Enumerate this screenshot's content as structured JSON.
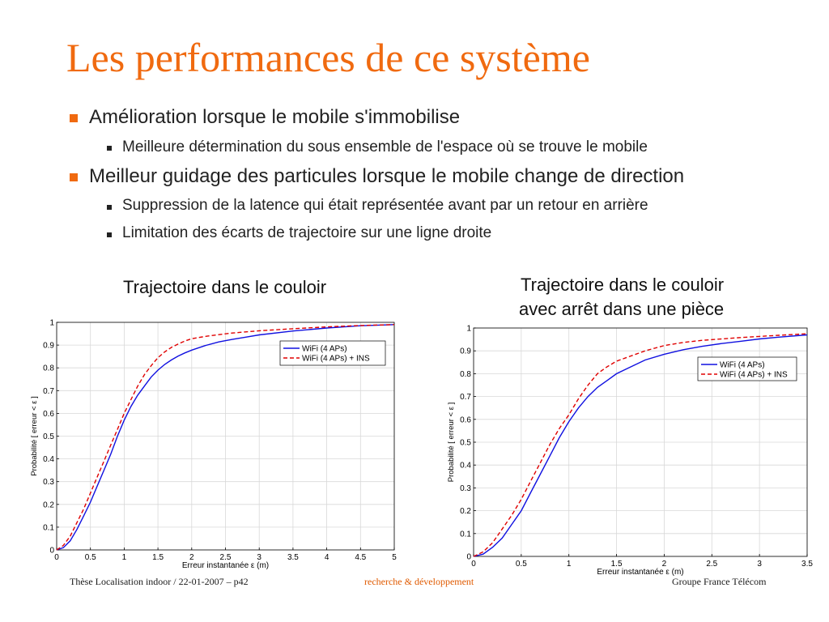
{
  "title": "Les performances de ce système",
  "bullets": [
    {
      "level": 1,
      "text": "Amélioration lorsque le mobile s'immobilise"
    },
    {
      "level": 2,
      "text": "Meilleure détermination du sous ensemble de l'espace où se trouve le mobile"
    },
    {
      "level": 1,
      "text": "Meilleur guidage des particules lorsque le mobile change de direction"
    },
    {
      "level": 2,
      "text": "Suppression de la latence qui était représentée avant par un retour en arrière"
    },
    {
      "level": 2,
      "text": "Limitation des écarts de trajectoire sur une ligne droite"
    }
  ],
  "captions": {
    "left": "Trajectoire dans le couloir",
    "right_line1": "Trajectoire dans le couloir",
    "right_line2": "avec arrêt dans une pièce"
  },
  "footer": {
    "left": "Thèse Localisation indoor / 22-01-2007 –  p42",
    "center": "recherche & développement",
    "right": "Groupe France Télécom"
  },
  "colors": {
    "title": "#f06a10",
    "wifi": "#1010e0",
    "ins": "#e00000",
    "footer_center": "#e05a00"
  },
  "chart_data": [
    {
      "type": "line",
      "xlabel": "Erreur instantanée ε (m)",
      "ylabel": "Probabilité [ erreur < ε ]",
      "xlim": [
        0,
        5
      ],
      "ylim": [
        0,
        1
      ],
      "xticks": [
        "0",
        "0.5",
        "1",
        "1.5",
        "2",
        "2.5",
        "3",
        "3.5",
        "4",
        "4.5",
        "5"
      ],
      "yticks": [
        "0",
        "0.1",
        "0.2",
        "0.3",
        "0.4",
        "0.5",
        "0.6",
        "0.7",
        "0.8",
        "0.9",
        "1"
      ],
      "legend_position": "top-right",
      "series": [
        {
          "name": "WiFi (4 APs)",
          "style": "solid",
          "x": [
            0,
            0.1,
            0.2,
            0.3,
            0.4,
            0.5,
            0.6,
            0.7,
            0.8,
            0.9,
            1.0,
            1.1,
            1.2,
            1.3,
            1.4,
            1.5,
            1.6,
            1.7,
            1.8,
            1.9,
            2.0,
            2.2,
            2.4,
            2.6,
            2.8,
            3.0,
            3.5,
            4.0,
            4.5,
            5.0
          ],
          "y": [
            0,
            0.01,
            0.04,
            0.09,
            0.15,
            0.21,
            0.28,
            0.35,
            0.42,
            0.5,
            0.57,
            0.63,
            0.68,
            0.72,
            0.76,
            0.79,
            0.815,
            0.835,
            0.852,
            0.866,
            0.878,
            0.898,
            0.914,
            0.925,
            0.935,
            0.945,
            0.962,
            0.975,
            0.985,
            0.99
          ]
        },
        {
          "name": "WiFi (4 APs) + INS",
          "style": "dashed",
          "x": [
            0,
            0.1,
            0.2,
            0.3,
            0.4,
            0.5,
            0.6,
            0.7,
            0.8,
            0.9,
            1.0,
            1.1,
            1.2,
            1.3,
            1.4,
            1.5,
            1.6,
            1.7,
            1.8,
            1.9,
            2.0,
            2.2,
            2.4,
            2.6,
            2.8,
            3.0,
            3.5,
            4.0,
            4.5,
            5.0
          ],
          "y": [
            0,
            0.02,
            0.06,
            0.12,
            0.18,
            0.25,
            0.32,
            0.39,
            0.46,
            0.53,
            0.6,
            0.66,
            0.72,
            0.77,
            0.81,
            0.845,
            0.87,
            0.89,
            0.905,
            0.918,
            0.928,
            0.938,
            0.946,
            0.953,
            0.958,
            0.963,
            0.972,
            0.98,
            0.986,
            0.99
          ]
        }
      ]
    },
    {
      "type": "line",
      "xlabel": "Erreur instantanée ε (m)",
      "ylabel": "Probabilité [ erreur < ε ]",
      "xlim": [
        0,
        3.5
      ],
      "ylim": [
        0,
        1
      ],
      "xticks": [
        "0",
        "0.5",
        "1",
        "1.5",
        "2",
        "2.5",
        "3",
        "3.5"
      ],
      "yticks": [
        "0",
        "0.1",
        "0.2",
        "0.3",
        "0.4",
        "0.5",
        "0.6",
        "0.7",
        "0.8",
        "0.9",
        "1"
      ],
      "legend_position": "center-right",
      "series": [
        {
          "name": "WiFi (4 APs)",
          "style": "solid",
          "x": [
            0,
            0.1,
            0.2,
            0.3,
            0.4,
            0.5,
            0.6,
            0.7,
            0.8,
            0.9,
            1.0,
            1.1,
            1.2,
            1.3,
            1.4,
            1.5,
            1.6,
            1.8,
            2.0,
            2.2,
            2.4,
            2.6,
            2.8,
            3.0,
            3.2,
            3.5
          ],
          "y": [
            0,
            0.01,
            0.04,
            0.08,
            0.14,
            0.2,
            0.28,
            0.36,
            0.44,
            0.52,
            0.59,
            0.65,
            0.7,
            0.74,
            0.77,
            0.8,
            0.82,
            0.86,
            0.885,
            0.905,
            0.92,
            0.932,
            0.942,
            0.952,
            0.96,
            0.97
          ]
        },
        {
          "name": "WiFi (4 APs) + INS",
          "style": "dashed",
          "x": [
            0,
            0.1,
            0.2,
            0.3,
            0.4,
            0.5,
            0.6,
            0.7,
            0.8,
            0.9,
            1.0,
            1.1,
            1.2,
            1.3,
            1.4,
            1.5,
            1.6,
            1.8,
            2.0,
            2.2,
            2.4,
            2.6,
            2.8,
            3.0,
            3.2,
            3.5
          ],
          "y": [
            0,
            0.02,
            0.06,
            0.12,
            0.18,
            0.25,
            0.33,
            0.41,
            0.49,
            0.56,
            0.62,
            0.69,
            0.75,
            0.8,
            0.83,
            0.855,
            0.87,
            0.9,
            0.923,
            0.937,
            0.946,
            0.952,
            0.958,
            0.963,
            0.968,
            0.975
          ]
        }
      ]
    }
  ]
}
